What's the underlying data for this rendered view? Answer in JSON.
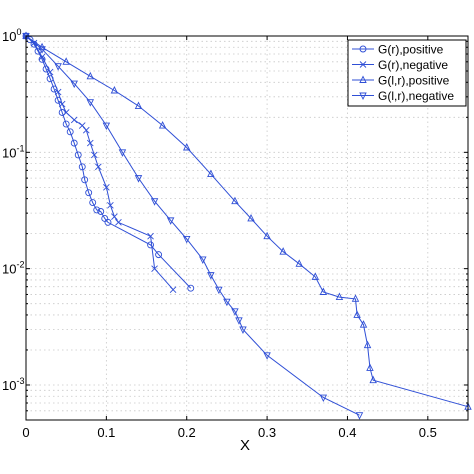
{
  "chart_data": {
    "type": "line",
    "title": "",
    "xlabel": "X",
    "ylabel": "",
    "xlim": [
      0,
      0.55
    ],
    "ylim": [
      0.0005,
      1
    ],
    "yscale": "log",
    "grid": true,
    "legend_position": "top-right",
    "x_ticks": [
      0,
      0.1,
      0.2,
      0.3,
      0.4,
      0.5
    ],
    "x_tick_labels": [
      "0",
      "0.1",
      "0.2",
      "0.3",
      "0.4",
      "0.5"
    ],
    "y_ticks": [
      1,
      0.1,
      0.01,
      0.001
    ],
    "y_tick_labels": [
      {
        "base": "10",
        "exp": "0"
      },
      {
        "base": "10",
        "exp": "-1"
      },
      {
        "base": "10",
        "exp": "-2"
      },
      {
        "base": "10",
        "exp": "-3"
      }
    ],
    "series_color": "#2f4fd6",
    "series": [
      {
        "name": "G(r),positive",
        "marker": "circle",
        "points": [
          [
            0,
            1
          ],
          [
            0.005,
            0.93
          ],
          [
            0.01,
            0.85
          ],
          [
            0.015,
            0.74
          ],
          [
            0.02,
            0.63
          ],
          [
            0.025,
            0.52
          ],
          [
            0.03,
            0.43
          ],
          [
            0.035,
            0.35
          ],
          [
            0.04,
            0.28
          ],
          [
            0.045,
            0.22
          ],
          [
            0.05,
            0.175
          ],
          [
            0.055,
            0.15
          ],
          [
            0.06,
            0.12
          ],
          [
            0.065,
            0.095
          ],
          [
            0.07,
            0.075
          ],
          [
            0.073,
            0.058
          ],
          [
            0.078,
            0.045
          ],
          [
            0.083,
            0.037
          ],
          [
            0.088,
            0.032
          ],
          [
            0.093,
            0.031
          ],
          [
            0.098,
            0.027
          ],
          [
            0.102,
            0.025
          ],
          [
            0.155,
            0.016
          ],
          [
            0.165,
            0.0132
          ],
          [
            0.205,
            0.0068
          ]
        ]
      },
      {
        "name": "G(r),negative",
        "marker": "x",
        "points": [
          [
            0,
            1
          ],
          [
            0.01,
            0.87
          ],
          [
            0.02,
            0.66
          ],
          [
            0.03,
            0.49
          ],
          [
            0.04,
            0.33
          ],
          [
            0.045,
            0.26
          ],
          [
            0.05,
            0.22
          ],
          [
            0.06,
            0.19
          ],
          [
            0.07,
            0.17
          ],
          [
            0.075,
            0.155
          ],
          [
            0.08,
            0.12
          ],
          [
            0.085,
            0.095
          ],
          [
            0.09,
            0.075
          ],
          [
            0.1,
            0.05
          ],
          [
            0.105,
            0.035
          ],
          [
            0.11,
            0.028
          ],
          [
            0.115,
            0.025
          ],
          [
            0.155,
            0.019
          ],
          [
            0.16,
            0.01
          ],
          [
            0.183,
            0.0066
          ]
        ]
      },
      {
        "name": "G(l,r),positive",
        "marker": "triangle-up",
        "points": [
          [
            0,
            1
          ],
          [
            0.02,
            0.8
          ],
          [
            0.05,
            0.6
          ],
          [
            0.08,
            0.45
          ],
          [
            0.11,
            0.34
          ],
          [
            0.14,
            0.25
          ],
          [
            0.17,
            0.17
          ],
          [
            0.2,
            0.11
          ],
          [
            0.23,
            0.065
          ],
          [
            0.26,
            0.038
          ],
          [
            0.28,
            0.027
          ],
          [
            0.3,
            0.019
          ],
          [
            0.32,
            0.014
          ],
          [
            0.34,
            0.011
          ],
          [
            0.36,
            0.0085
          ],
          [
            0.37,
            0.0063
          ],
          [
            0.39,
            0.0057
          ],
          [
            0.41,
            0.0055
          ],
          [
            0.412,
            0.004
          ],
          [
            0.42,
            0.0033
          ],
          [
            0.425,
            0.0022
          ],
          [
            0.428,
            0.0014
          ],
          [
            0.432,
            0.0011
          ],
          [
            0.55,
            0.00065
          ]
        ]
      },
      {
        "name": "G(l,r),negative",
        "marker": "triangle-down",
        "points": [
          [
            0,
            1
          ],
          [
            0.02,
            0.77
          ],
          [
            0.04,
            0.55
          ],
          [
            0.06,
            0.39
          ],
          [
            0.08,
            0.27
          ],
          [
            0.1,
            0.17
          ],
          [
            0.12,
            0.1
          ],
          [
            0.14,
            0.06
          ],
          [
            0.16,
            0.038
          ],
          [
            0.18,
            0.026
          ],
          [
            0.2,
            0.018
          ],
          [
            0.22,
            0.012
          ],
          [
            0.23,
            0.0088
          ],
          [
            0.24,
            0.0066
          ],
          [
            0.25,
            0.0052
          ],
          [
            0.26,
            0.0043
          ],
          [
            0.265,
            0.0036
          ],
          [
            0.27,
            0.003
          ],
          [
            0.3,
            0.0018
          ],
          [
            0.37,
            0.00078
          ],
          [
            0.415,
            0.00055
          ]
        ]
      }
    ]
  }
}
